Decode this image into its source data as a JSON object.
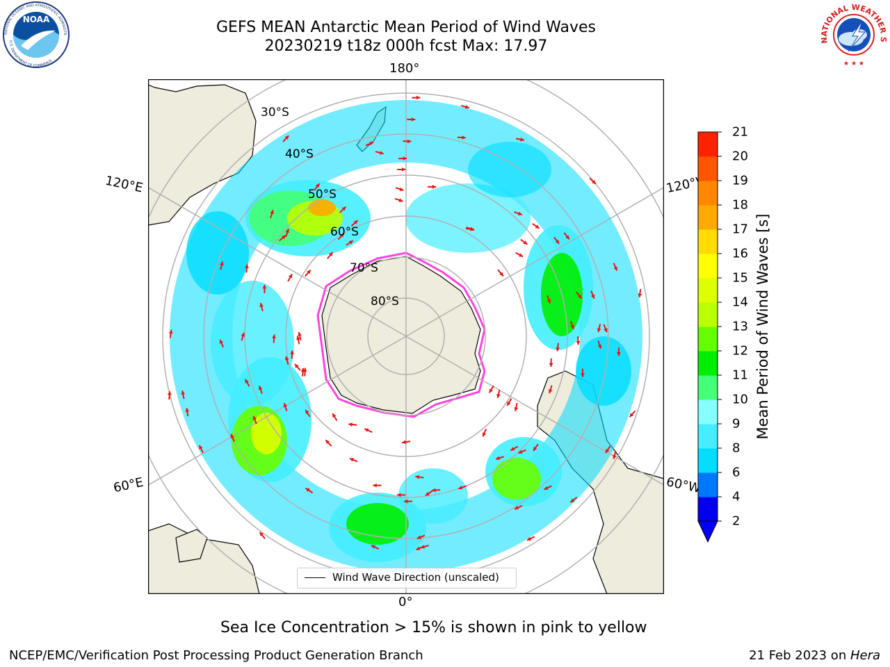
{
  "header": {
    "title_line1": "GEFS MEAN Antarctic Mean Period of Wind Waves",
    "title_line2": "20230219 t18z 000h fcst   Max: 17.97"
  },
  "logos": {
    "noaa_text": "NOAA",
    "noaa_ring_top": "NATIONAL OCEANIC AND ATMOSPHERIC ADMINISTRATION",
    "noaa_ring_bottom": "U.S. DEPARTMENT OF COMMERCE",
    "nws_ring_top": "NATIONAL WEATHER SERVICE"
  },
  "map": {
    "longitude_labels": {
      "top": "180°",
      "left_upper": "120°E",
      "right_upper": "120°W",
      "left_lower": "60°E",
      "right_lower": "60°W",
      "bottom": "0°"
    },
    "latitude_labels": [
      "30°S",
      "40°S",
      "50°S",
      "60°S",
      "70°S",
      "80°S"
    ],
    "legend_label": "Wind Wave Direction (unscaled)",
    "colors": {
      "land": "#eeecdc",
      "ocean": "#ffffff",
      "ice": "#ff44dd",
      "arrow": "#ee1111",
      "grid": "#b0b0b0"
    }
  },
  "colorbar": {
    "label": "Mean Period of Wind Waves [s]",
    "ticks": [
      "2",
      "4",
      "6",
      "8",
      "9",
      "10",
      "11",
      "12",
      "13",
      "14",
      "15",
      "16",
      "17",
      "18",
      "19",
      "20",
      "21"
    ],
    "colors": [
      "#0000ee",
      "#0077ff",
      "#00ddff",
      "#44eeff",
      "#88ffff",
      "#44ff77",
      "#00ee00",
      "#66ff00",
      "#bbff00",
      "#ddff00",
      "#ffff00",
      "#ffdd00",
      "#ffaa00",
      "#ff8800",
      "#ff5500",
      "#ff2200"
    ]
  },
  "footer": {
    "note": "Sea Ice Concentration > 15% is shown in pink to yellow",
    "credit": "NCEP/EMC/Verification Post Processing Product Generation Branch",
    "date_prefix": "21 Feb 2023 on ",
    "machine": "Hera"
  }
}
